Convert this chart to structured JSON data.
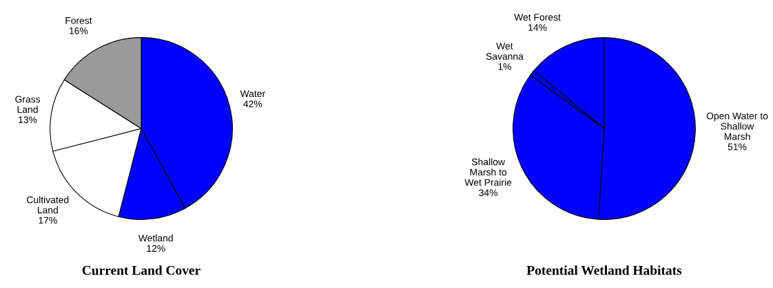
{
  "chart_data": [
    {
      "type": "pie",
      "title": "Current Land Cover",
      "categories": [
        "Water",
        "Wetland",
        "Cultivated\nLand",
        "Grass\nLand",
        "Forest"
      ],
      "values": [
        42,
        12,
        17,
        13,
        16
      ],
      "value_labels": [
        "42%",
        "12%",
        "17%",
        "13%",
        "16%"
      ],
      "colors": [
        "#0000ff",
        "#0000ff",
        "#ffffff",
        "#ffffff",
        "#9a9a9a"
      ],
      "legend": false
    },
    {
      "type": "pie",
      "title": "Potential Wetland Habitats",
      "categories": [
        "Open Water to\nShallow\nMarsh",
        "Shallow\nMarsh to\nWet Prairie",
        "Wet\nSavanna",
        "Wet Forest"
      ],
      "values": [
        51,
        34,
        1,
        14
      ],
      "value_labels": [
        "51%",
        "34%",
        "1%",
        "14%"
      ],
      "colors": [
        "#0000ff",
        "#0000ff",
        "#0000ff",
        "#0000ff"
      ],
      "legend": false
    }
  ]
}
